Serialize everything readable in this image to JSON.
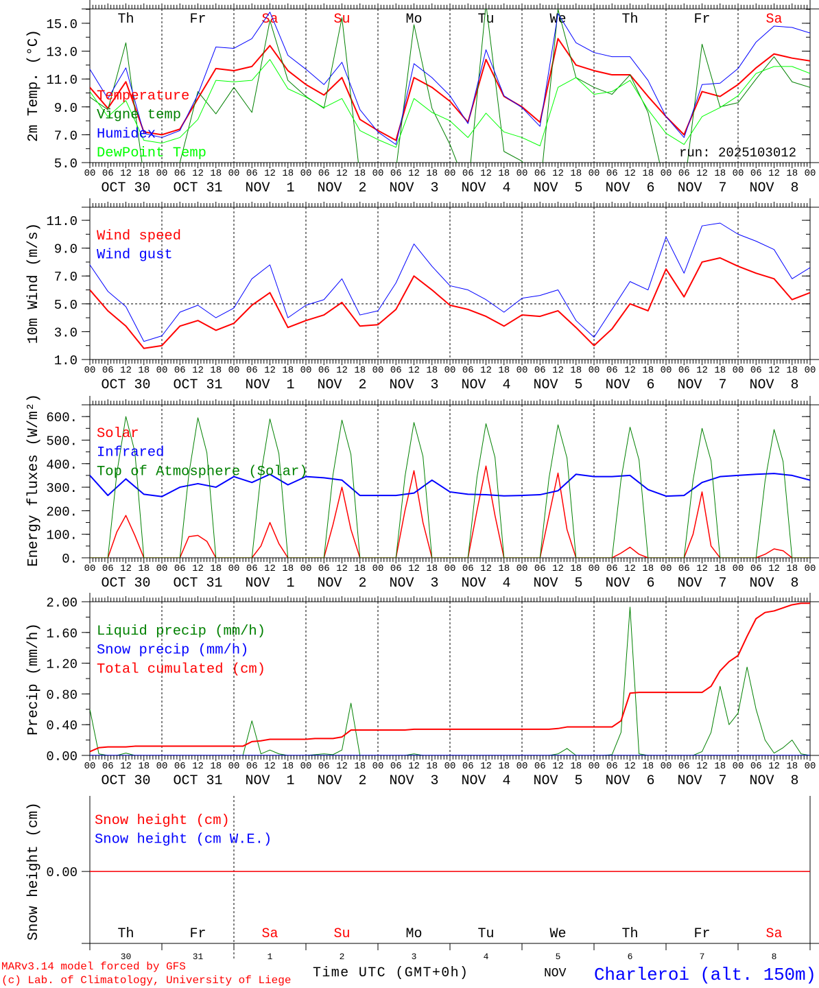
{
  "footer": {
    "credit_line1": "MARv3.14 model forced by GFS",
    "credit_line2": "(c) Lab. of Climatology, University of Liege",
    "time_label": "Time UTC (GMT+0h)",
    "month_label": "NOV",
    "location": "Charleroi (alt. 150m)",
    "run": "run: 2025103012"
  },
  "colors": {
    "red": "#ff0000",
    "blue": "#0000ff",
    "dark_green": "#008000",
    "light_green": "#00ff00",
    "black": "#000000"
  },
  "x_axis": {
    "start": "OCT 30 00 UTC",
    "days": 10,
    "hour_labels": [
      "00",
      "06",
      "12",
      "18"
    ],
    "end_hour_label": "00",
    "date_labels": [
      "OCT 30",
      "OCT 31",
      "NOV  1",
      "NOV  2",
      "NOV  3",
      "NOV  4",
      "NOV  5",
      "NOV  6",
      "NOV  7",
      "NOV  8"
    ],
    "weekdays": [
      {
        "label": "Th",
        "weekend": false
      },
      {
        "label": "Fr",
        "weekend": false
      },
      {
        "label": "Sa",
        "weekend": true
      },
      {
        "label": "Su",
        "weekend": true
      },
      {
        "label": "Mo",
        "weekend": false
      },
      {
        "label": "Tu",
        "weekend": false
      },
      {
        "label": "We",
        "weekend": false
      },
      {
        "label": "Th",
        "weekend": false
      },
      {
        "label": "Fr",
        "weekend": false
      },
      {
        "label": "Sa",
        "weekend": true
      }
    ],
    "day_numbers": [
      "30",
      "31",
      "1",
      "2",
      "3",
      "4",
      "5",
      "6",
      "7",
      "8"
    ]
  },
  "chart_data": [
    {
      "type": "line",
      "ylabel": "2m Temp. (°C)",
      "ylim": [
        5,
        16.03
      ],
      "yticks": [
        5,
        7,
        9,
        11,
        13,
        15
      ],
      "ytick_labels": [
        "5.0",
        "7.0",
        "9.0",
        "11.0",
        "13.0",
        "15.0"
      ],
      "yminor_step": 1,
      "series": [
        {
          "name": "Temperature",
          "color": "#ff0000",
          "width": 2,
          "step_hours": 6,
          "values": [
            10.4,
            8.9,
            10.8,
            7.2,
            7.0,
            7.4,
            9.6,
            11.75,
            11.6,
            11.9,
            13.4,
            11.6,
            10.6,
            9.85,
            11.1,
            8.1,
            7.3,
            6.6,
            11.1,
            10.4,
            9.4,
            7.9,
            12.4,
            9.75,
            9.0,
            7.9,
            13.9,
            12.0,
            11.6,
            11.3,
            11.3,
            9.75,
            8.3,
            7.0,
            10.1,
            9.75,
            10.6,
            11.8,
            12.8,
            12.5,
            12.3
          ]
        },
        {
          "name": "Vigne temp",
          "color": "#008000",
          "width": 1,
          "step_hours": 6,
          "values": [
            9.7,
            8.8,
            13.6,
            4.0,
            4.5,
            5.0,
            10.1,
            8.5,
            10.4,
            8.6,
            15.2,
            10.9,
            9.75,
            8.9,
            15.4,
            4.0,
            3.0,
            4.5,
            14.9,
            8.9,
            6.3,
            3.0,
            16.4,
            5.8,
            5.1,
            3.0,
            16.0,
            11.1,
            10.4,
            9.9,
            11.3,
            8.6,
            3.0,
            3.0,
            13.5,
            9.0,
            9.3,
            11.0,
            12.6,
            10.8,
            10.4
          ]
        },
        {
          "name": "Humidex",
          "color": "#0000ff",
          "width": 1,
          "step_hours": 6,
          "values": [
            11.7,
            9.6,
            11.8,
            7.1,
            6.8,
            7.3,
            9.9,
            13.3,
            13.2,
            13.9,
            15.8,
            12.7,
            11.7,
            10.6,
            12.2,
            8.8,
            7.2,
            6.3,
            12.1,
            11.1,
            9.8,
            7.8,
            13.1,
            9.8,
            8.95,
            7.6,
            15.7,
            13.6,
            12.9,
            12.6,
            12.6,
            10.9,
            8.3,
            6.8,
            10.6,
            10.7,
            11.75,
            13.65,
            14.8,
            14.7,
            14.3
          ]
        },
        {
          "name": "DewPoint Temp",
          "color": "#00ff00",
          "width": 1,
          "step_hours": 6,
          "values": [
            10.1,
            8.3,
            9.45,
            6.6,
            6.4,
            6.8,
            8.1,
            10.9,
            10.8,
            10.9,
            12.4,
            10.3,
            9.7,
            8.95,
            9.6,
            7.3,
            6.65,
            6.1,
            9.6,
            8.6,
            8.0,
            6.8,
            8.55,
            7.2,
            6.8,
            6.2,
            10.4,
            11.1,
            9.9,
            10.1,
            10.9,
            8.8,
            7.1,
            6.3,
            8.3,
            8.95,
            9.8,
            11.4,
            11.9,
            11.9,
            11.4
          ]
        }
      ]
    },
    {
      "type": "line",
      "ylabel": "10m Wind (m/s)",
      "ylim": [
        1,
        11.94
      ],
      "yticks": [
        1,
        3,
        5,
        7,
        9,
        11
      ],
      "ytick_labels": [
        "1.0",
        "3.0",
        "5.0",
        "7.0",
        "9.0",
        "11.0"
      ],
      "yminor_step": 1,
      "reference_line": 5.0,
      "series": [
        {
          "name": "Wind speed",
          "color": "#ff0000",
          "width": 2,
          "step_hours": 6,
          "values": [
            6.0,
            4.5,
            3.4,
            1.8,
            2.0,
            3.4,
            3.8,
            3.1,
            3.6,
            4.9,
            5.8,
            3.3,
            3.8,
            4.2,
            5.1,
            3.4,
            3.5,
            4.6,
            7.0,
            6.0,
            4.9,
            4.6,
            4.1,
            3.4,
            4.2,
            4.1,
            4.5,
            3.3,
            2.0,
            3.2,
            5.0,
            4.5,
            7.5,
            5.5,
            8.0,
            8.3,
            7.7,
            7.2,
            6.8,
            5.3,
            5.8
          ]
        },
        {
          "name": "Wind gust",
          "color": "#0000ff",
          "width": 1,
          "step_hours": 6,
          "values": [
            7.8,
            5.9,
            4.8,
            2.3,
            2.7,
            4.4,
            4.9,
            4.0,
            4.7,
            6.8,
            7.8,
            4.0,
            4.9,
            5.3,
            6.8,
            4.2,
            4.5,
            6.5,
            9.3,
            7.7,
            6.3,
            6.0,
            5.3,
            4.4,
            5.4,
            5.6,
            6.0,
            3.8,
            2.6,
            4.6,
            6.6,
            6.0,
            9.8,
            7.2,
            10.6,
            10.8,
            10.0,
            9.5,
            8.9,
            6.8,
            7.6
          ]
        }
      ]
    },
    {
      "type": "line",
      "ylabel": "Energy fluxes (W/m²)",
      "ylim": [
        0,
        650
      ],
      "yticks": [
        0,
        100,
        200,
        300,
        400,
        500,
        600
      ],
      "ytick_labels": [
        "0.",
        "100.",
        "200.",
        "300.",
        "400.",
        "500.",
        "600."
      ],
      "yminor_step": 50,
      "series": [
        {
          "name": "Solar",
          "color": "#ff0000",
          "width": 1.5,
          "step_hours": 3,
          "values": [
            0,
            0,
            0,
            110,
            180,
            95,
            0,
            0,
            0,
            0,
            0,
            90,
            95,
            70,
            0,
            0,
            0,
            0,
            0,
            50,
            150,
            60,
            0,
            0,
            0,
            0,
            0,
            140,
            300,
            120,
            0,
            0,
            0,
            0,
            0,
            200,
            370,
            150,
            0,
            0,
            0,
            0,
            0,
            200,
            390,
            180,
            0,
            0,
            0,
            0,
            0,
            180,
            360,
            120,
            0,
            0,
            0,
            0,
            0,
            20,
            45,
            15,
            0,
            0,
            0,
            0,
            0,
            100,
            280,
            50,
            0,
            0,
            0,
            0,
            0,
            15,
            38,
            30,
            0,
            0,
            0
          ]
        },
        {
          "name": "Infrared",
          "color": "#0000ff",
          "width": 2,
          "step_hours": 6,
          "values": [
            350,
            265,
            335,
            270,
            260,
            300,
            315,
            300,
            345,
            320,
            355,
            310,
            345,
            340,
            330,
            265,
            265,
            265,
            275,
            330,
            280,
            270,
            268,
            263,
            265,
            268,
            285,
            355,
            345,
            345,
            350,
            290,
            262,
            265,
            320,
            345,
            350,
            355,
            358,
            350,
            330
          ]
        },
        {
          "name": "Top of Atmosphere (Solar)",
          "color": "#008000",
          "width": 1,
          "step_hours": 3,
          "values": [
            0,
            0,
            0,
            360,
            600,
            450,
            0,
            0,
            0,
            0,
            0,
            357,
            595,
            446,
            0,
            0,
            0,
            0,
            0,
            354,
            590,
            442,
            0,
            0,
            0,
            0,
            0,
            351,
            585,
            439,
            0,
            0,
            0,
            0,
            0,
            345,
            575,
            431,
            0,
            0,
            0,
            0,
            0,
            342,
            570,
            427,
            0,
            0,
            0,
            0,
            0,
            339,
            565,
            424,
            0,
            0,
            0,
            0,
            0,
            333,
            555,
            416,
            0,
            0,
            0,
            0,
            0,
            330,
            550,
            412,
            0,
            0,
            0,
            0,
            0,
            327,
            545,
            409,
            0,
            0,
            0
          ]
        }
      ]
    },
    {
      "type": "line",
      "ylabel": "Precip (mm/h)",
      "ylim": [
        0,
        2
      ],
      "yticks": [
        0,
        0.4,
        0.8,
        1.2,
        1.6,
        2.0
      ],
      "ytick_labels": [
        "0.00",
        "0.40",
        "0.80",
        "1.20",
        "1.60",
        "2.00"
      ],
      "yminor_step": 0.2,
      "series": [
        {
          "name": "Liquid precip (mm/h)",
          "color": "#008000",
          "width": 1,
          "step_hours": 3,
          "values": [
            0.6,
            0.02,
            0,
            0,
            0.03,
            0,
            0,
            0,
            0,
            0,
            0,
            0,
            0,
            0,
            0,
            0,
            0,
            0,
            0.45,
            0.02,
            0.07,
            0.02,
            0,
            0,
            0,
            0.01,
            0.02,
            0.01,
            0.07,
            0.68,
            0,
            0,
            0,
            0,
            0,
            0,
            0.02,
            0,
            0,
            0,
            0,
            0,
            0,
            0,
            0,
            0,
            0,
            0,
            0,
            0,
            0,
            0,
            0.02,
            0.09,
            0,
            0,
            0,
            0,
            0.01,
            0.3,
            1.93,
            0.02,
            0,
            0,
            0,
            0,
            0,
            0,
            0.05,
            0.3,
            0.9,
            0.4,
            0.55,
            1.15,
            0.6,
            0.2,
            0.03,
            0.1,
            0.2,
            0.02,
            0
          ]
        },
        {
          "name": "Snow precip (mm/h)",
          "color": "#0000ff",
          "width": 1.5,
          "step_hours": 6,
          "values": [
            0,
            0,
            0,
            0,
            0,
            0,
            0,
            0,
            0,
            0,
            0,
            0,
            0,
            0,
            0,
            0,
            0,
            0,
            0,
            0,
            0,
            0,
            0,
            0,
            0,
            0,
            0,
            0,
            0,
            0,
            0,
            0,
            0,
            0,
            0,
            0,
            0,
            0,
            0,
            0,
            0
          ]
        },
        {
          "name": "Total cumulated (cm)",
          "color": "#ff0000",
          "width": 2,
          "step_hours": 3,
          "values": [
            0.05,
            0.1,
            0.11,
            0.11,
            0.11,
            0.12,
            0.12,
            0.12,
            0.12,
            0.12,
            0.12,
            0.12,
            0.12,
            0.12,
            0.12,
            0.12,
            0.12,
            0.12,
            0.18,
            0.19,
            0.21,
            0.21,
            0.21,
            0.21,
            0.21,
            0.22,
            0.22,
            0.22,
            0.24,
            0.33,
            0.33,
            0.33,
            0.33,
            0.33,
            0.33,
            0.33,
            0.34,
            0.34,
            0.34,
            0.34,
            0.34,
            0.34,
            0.34,
            0.34,
            0.34,
            0.34,
            0.34,
            0.34,
            0.34,
            0.34,
            0.34,
            0.34,
            0.35,
            0.37,
            0.37,
            0.37,
            0.37,
            0.37,
            0.37,
            0.45,
            0.81,
            0.82,
            0.82,
            0.82,
            0.82,
            0.82,
            0.82,
            0.82,
            0.82,
            0.9,
            1.1,
            1.22,
            1.3,
            1.55,
            1.78,
            1.86,
            1.88,
            1.92,
            1.96,
            1.98,
            1.98
          ]
        }
      ]
    },
    {
      "type": "line",
      "ylabel": "Snow height (cm)",
      "ylim": [
        -1,
        1.05
      ],
      "yticks": [
        0
      ],
      "ytick_labels": [
        "0.00"
      ],
      "yminor_step": null,
      "series": [
        {
          "name": "Snow height (cm W.E.)",
          "color": "#0000ff",
          "width": 1,
          "step_hours": 240,
          "values": [
            0,
            0
          ],
          "legend_order": 1
        },
        {
          "name": "Snow height (cm)",
          "color": "#ff0000",
          "width": 1.5,
          "step_hours": 240,
          "values": [
            0,
            0
          ],
          "legend_order": 0
        }
      ]
    }
  ]
}
